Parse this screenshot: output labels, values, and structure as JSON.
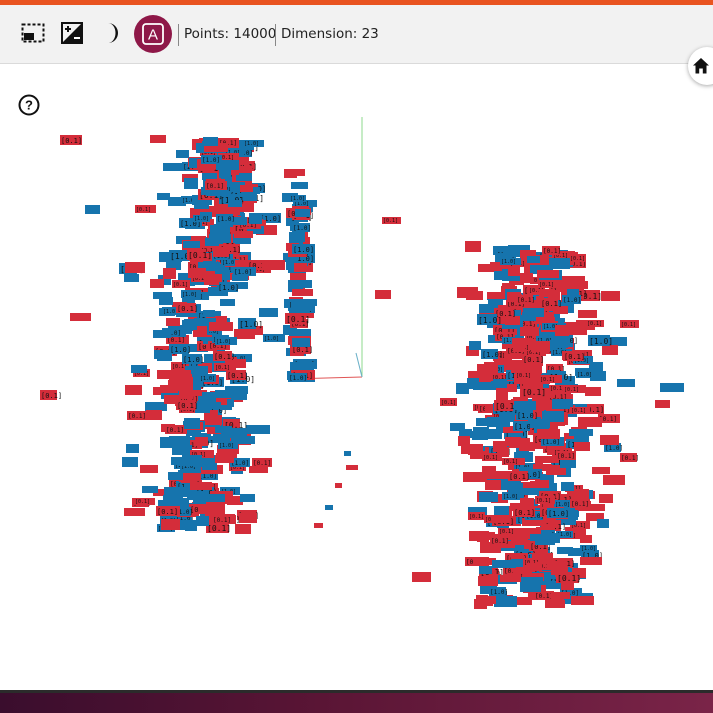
{
  "toolbar": {
    "points_text": "Points: 14000",
    "dimension_text": "Dimension: 23",
    "label_button_letter": "A",
    "icons": [
      "screen-mode-icon",
      "exposure-icon",
      "moon-icon",
      "label-toggle-icon"
    ]
  },
  "controls": {
    "home_icon": "home-icon",
    "help_icon": "help-icon",
    "help_glyph": "?"
  },
  "plot": {
    "label_samples": [
      "[0.1]",
      "[1.0]"
    ],
    "colors": {
      "red": "#d42d3a",
      "blue": "#1674ad",
      "axis_x": "#e05555",
      "axis_y": "#8ed88e",
      "axis_z": "#6ab0c8"
    }
  },
  "colors": {
    "accent_top": "#e95420",
    "toolbar_bg": "#f2f2f2",
    "label_button": "#8e1848"
  }
}
